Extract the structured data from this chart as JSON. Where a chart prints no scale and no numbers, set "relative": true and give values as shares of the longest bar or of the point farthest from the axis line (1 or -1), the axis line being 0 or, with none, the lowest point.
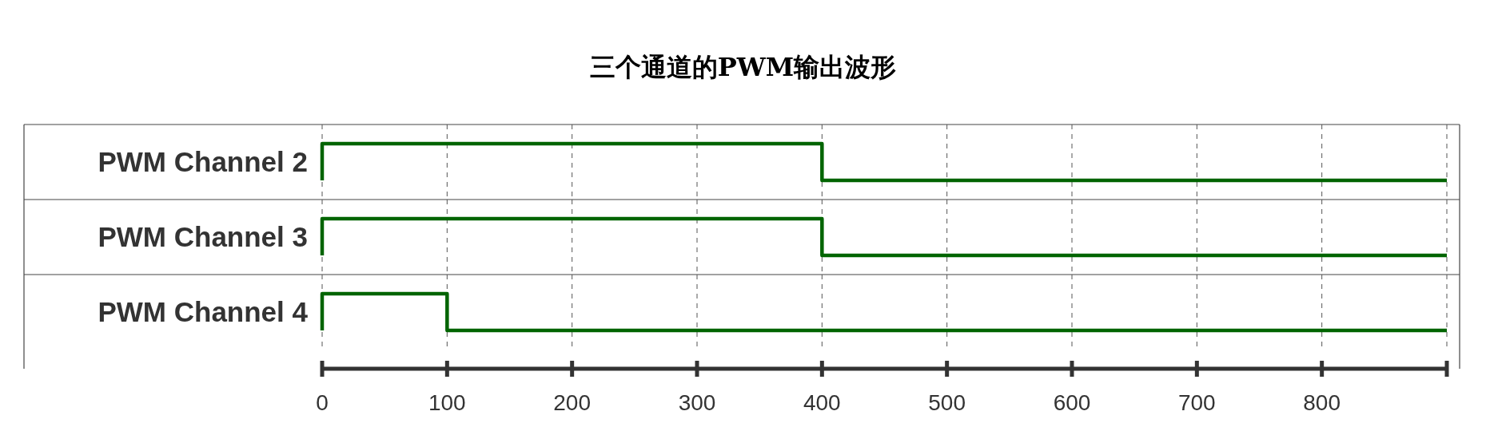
{
  "chart_data": [
    {
      "type": "step",
      "title": "三个通道的PWM输出波形",
      "ylabel": "PWM Channel 2",
      "relative": true,
      "x": [
        0,
        0,
        400,
        900
      ],
      "values": [
        0,
        1,
        0,
        0
      ],
      "color": "#006400",
      "xlim": [
        0,
        900
      ],
      "grid": "x",
      "tick_labels": false
    },
    {
      "type": "step",
      "ylabel": "PWM Channel 3",
      "relative": true,
      "x": [
        0,
        0,
        400,
        900
      ],
      "values": [
        0,
        1,
        0,
        0
      ],
      "color": "#006400",
      "xlim": [
        0,
        900
      ],
      "grid": "x",
      "tick_labels": false
    },
    {
      "type": "step",
      "ylabel": "PWM Channel 4",
      "relative": true,
      "x": [
        0,
        0,
        100,
        900
      ],
      "values": [
        0,
        1,
        0,
        0
      ],
      "color": "#006400",
      "xlim": [
        0,
        900
      ],
      "xticks": [
        0,
        100,
        200,
        300,
        400,
        500,
        600,
        700,
        800,
        {
          "value": 900,
          "label": null
        }
      ],
      "grid": "x",
      "tick_labels": "x"
    }
  ]
}
